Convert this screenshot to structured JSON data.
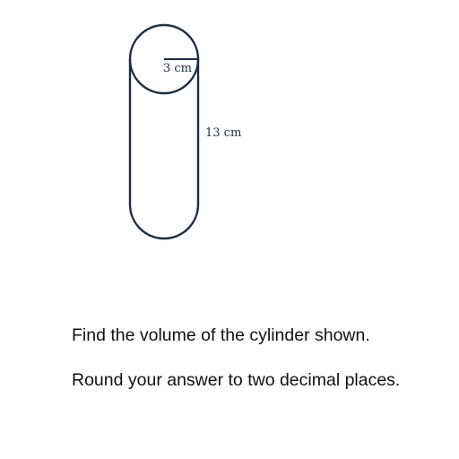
{
  "diagram": {
    "radius_label": "3 cm",
    "height_label": "13 cm",
    "stroke_color": "#1f2d3d"
  },
  "question": {
    "line1": "Find the volume of the cylinder shown.",
    "line2": "Round your answer to two decimal places."
  }
}
